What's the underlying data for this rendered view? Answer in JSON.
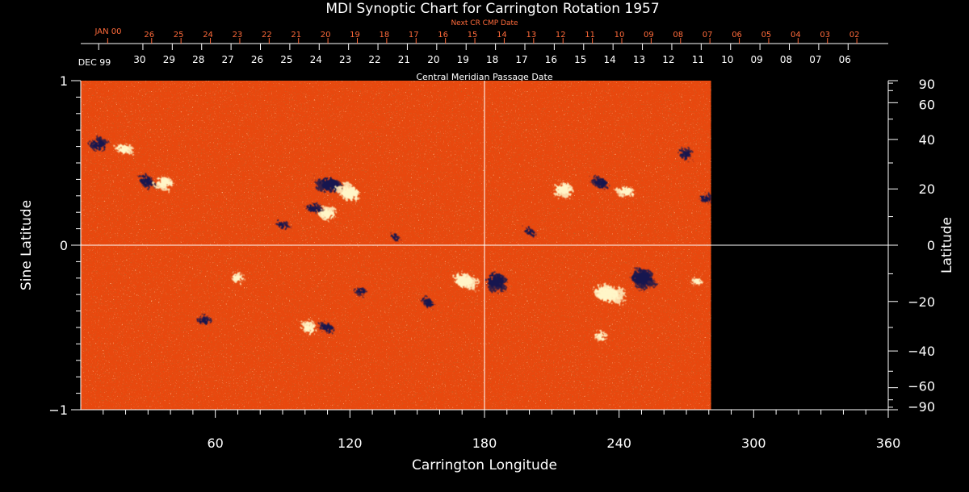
{
  "chart_data": {
    "type": "heatmap",
    "title": "MDI Synoptic Chart for Carrington Rotation 1957",
    "xlabel": "Carrington Longitude",
    "ylabel_left": "Sine Latitude",
    "ylabel_right": "Latitude",
    "top_axis_label": "Central Meridian Passage Date",
    "next_cr_label": "Next CR CMP Date",
    "xlim": [
      0,
      360
    ],
    "ylim": [
      -1,
      1
    ],
    "data_extent_longitude": [
      0,
      281
    ],
    "x_ticks": [
      "60",
      "120",
      "180",
      "240",
      "300",
      "360"
    ],
    "x_tick_values": [
      60,
      120,
      180,
      240,
      300,
      360
    ],
    "y_ticks_left": [
      "1",
      "0",
      "−1"
    ],
    "y_tick_values_left": [
      1,
      0,
      -1
    ],
    "y_ticks_right": [
      "90",
      "60",
      "40",
      "20",
      "0",
      "−20",
      "−40",
      "−60",
      "−90"
    ],
    "y_tick_degrees_right": [
      90,
      60,
      40,
      20,
      0,
      -20,
      -40,
      -60,
      -90
    ],
    "cmp_dates": {
      "start_label": "DEC 99",
      "labels": [
        "30",
        "29",
        "28",
        "27",
        "26",
        "25",
        "24",
        "23",
        "22",
        "21",
        "20",
        "19",
        "18",
        "17",
        "16",
        "15",
        "14",
        "13",
        "12",
        "11",
        "10",
        "09",
        "08",
        "07",
        "06"
      ],
      "longitudes": [
        27.7,
        40.8,
        53.9,
        67.0,
        80.1,
        93.2,
        106.3,
        119.4,
        132.5,
        145.6,
        158.7,
        171.8,
        184.9,
        198.0,
        211.1,
        224.2,
        237.3,
        250.4,
        263.5,
        276.6,
        289.7,
        302.8,
        315.9,
        329.0,
        342.1
      ]
    },
    "next_cr_dates": {
      "start_label": "JAN 00",
      "labels": [
        "26",
        "25",
        "24",
        "23",
        "22",
        "21",
        "20",
        "19",
        "18",
        "17",
        "16",
        "15",
        "14",
        "13",
        "12",
        "11",
        "10",
        "09",
        "08",
        "07",
        "06",
        "05",
        "04",
        "03",
        "02"
      ],
      "longitudes": [
        31.6,
        44.7,
        57.8,
        70.9,
        84.0,
        97.1,
        110.2,
        123.3,
        136.4,
        149.5,
        162.6,
        175.7,
        188.8,
        201.9,
        215.0,
        228.1,
        241.2,
        254.3,
        267.4,
        280.5,
        293.6,
        306.7,
        319.8,
        332.9,
        346.0
      ]
    },
    "colors": {
      "background": "#000000",
      "field_base": "#e8480e",
      "positive_polarity": "#fff6c8",
      "negative_polarity": "#1a1450",
      "next_cr_text": "#ff6a3a",
      "axis": "#ffffff"
    },
    "active_regions": [
      {
        "lon": 8,
        "sinlat": 0.61,
        "polarity": "negative",
        "size": 1.0
      },
      {
        "lon": 19,
        "sinlat": 0.58,
        "polarity": "positive",
        "size": 0.9
      },
      {
        "lon": 29,
        "sinlat": 0.39,
        "polarity": "negative",
        "size": 0.9
      },
      {
        "lon": 37,
        "sinlat": 0.38,
        "polarity": "positive",
        "size": 1.0
      },
      {
        "lon": 111,
        "sinlat": 0.37,
        "polarity": "negative",
        "size": 1.3
      },
      {
        "lon": 120,
        "sinlat": 0.32,
        "polarity": "positive",
        "size": 1.3
      },
      {
        "lon": 110,
        "sinlat": 0.19,
        "polarity": "positive",
        "size": 1.0
      },
      {
        "lon": 104,
        "sinlat": 0.22,
        "polarity": "negative",
        "size": 0.8
      },
      {
        "lon": 200,
        "sinlat": 0.08,
        "polarity": "negative",
        "size": 0.6
      },
      {
        "lon": 215,
        "sinlat": 0.34,
        "polarity": "positive",
        "size": 1.1
      },
      {
        "lon": 243,
        "sinlat": 0.33,
        "polarity": "positive",
        "size": 0.9
      },
      {
        "lon": 232,
        "sinlat": 0.38,
        "polarity": "negative",
        "size": 0.9
      },
      {
        "lon": 270,
        "sinlat": 0.55,
        "polarity": "negative",
        "size": 0.8
      },
      {
        "lon": 279,
        "sinlat": 0.28,
        "polarity": "negative",
        "size": 0.7
      },
      {
        "lon": 171,
        "sinlat": -0.22,
        "polarity": "positive",
        "size": 1.3
      },
      {
        "lon": 185,
        "sinlat": -0.22,
        "polarity": "negative",
        "size": 1.3
      },
      {
        "lon": 125,
        "sinlat": -0.28,
        "polarity": "negative",
        "size": 0.6
      },
      {
        "lon": 110,
        "sinlat": -0.5,
        "polarity": "negative",
        "size": 0.8
      },
      {
        "lon": 102,
        "sinlat": -0.5,
        "polarity": "positive",
        "size": 0.9
      },
      {
        "lon": 55,
        "sinlat": -0.46,
        "polarity": "negative",
        "size": 0.7
      },
      {
        "lon": 235,
        "sinlat": -0.3,
        "polarity": "positive",
        "size": 1.6
      },
      {
        "lon": 250,
        "sinlat": -0.2,
        "polarity": "negative",
        "size": 1.5
      },
      {
        "lon": 232,
        "sinlat": -0.55,
        "polarity": "positive",
        "size": 0.7
      },
      {
        "lon": 275,
        "sinlat": -0.22,
        "polarity": "positive",
        "size": 0.6
      },
      {
        "lon": 155,
        "sinlat": -0.35,
        "polarity": "negative",
        "size": 0.7
      },
      {
        "lon": 70,
        "sinlat": -0.2,
        "polarity": "positive",
        "size": 0.7
      },
      {
        "lon": 90,
        "sinlat": 0.12,
        "polarity": "negative",
        "size": 0.6
      },
      {
        "lon": 140,
        "sinlat": 0.05,
        "polarity": "negative",
        "size": 0.5
      }
    ]
  }
}
